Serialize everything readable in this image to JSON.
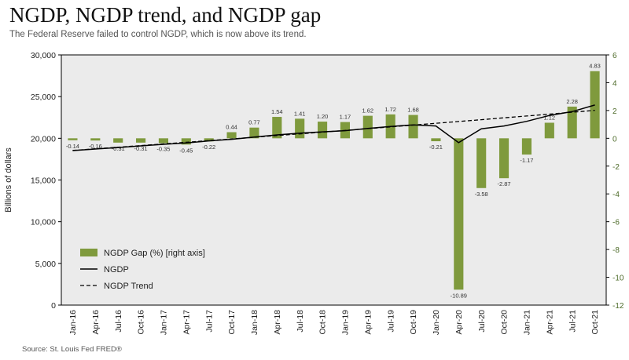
{
  "header": {
    "title": "NGDP, NGDP trend, and NGDP gap",
    "subtitle": "The Federal Reserve failed to control NGDP, which is now above its trend."
  },
  "footer": {
    "source": "Source: St. Louis Fed FRED®"
  },
  "colors": {
    "bar": "#7f9a3d",
    "line": "#000000",
    "plot_bg": "#ebebeb",
    "right_axis": "#4e6b2a"
  },
  "chart_data": {
    "type": "bar",
    "categories": [
      "Jan-16",
      "Apr-16",
      "Jul-16",
      "Oct-16",
      "Jan-17",
      "Apr-17",
      "Jul-17",
      "Oct-17",
      "Jan-18",
      "Apr-18",
      "Jul-18",
      "Oct-18",
      "Jan-19",
      "Apr-19",
      "Jul-19",
      "Oct-19",
      "Jan-20",
      "Apr-20",
      "Jul-20",
      "Oct-20",
      "Jan-21",
      "Apr-21",
      "Jul-21",
      "Oct-21"
    ],
    "series": [
      {
        "name": "NGDP Gap (%) [right axis]",
        "type": "bar",
        "axis": "right",
        "values": [
          -0.14,
          -0.16,
          -0.31,
          -0.31,
          -0.35,
          -0.45,
          -0.22,
          0.44,
          0.77,
          1.54,
          1.41,
          1.2,
          1.17,
          1.62,
          1.72,
          1.68,
          -0.21,
          -10.89,
          -3.58,
          -2.87,
          -1.17,
          1.12,
          2.28,
          4.83
        ],
        "labels": [
          "-0.14",
          "-0.16",
          "-0.31",
          "-0.31",
          "-0.35",
          "-0.45",
          "-0.22",
          "0.44",
          "0.77",
          "1.54",
          "1.41",
          "1.20",
          "1.17",
          "1.62",
          "1.72",
          "1.68",
          "-0.21",
          "-10.89",
          "-3.58",
          "-2.87",
          "-1.17",
          "1.12",
          "2.28",
          "4.83"
        ]
      },
      {
        "name": "NGDP",
        "type": "line",
        "axis": "left",
        "values": [
          18525,
          18712,
          18892,
          19089,
          19280,
          19438,
          19693,
          19882,
          20156,
          20410,
          20612,
          20775,
          20919,
          21191,
          21419,
          21610,
          21479,
          19477,
          21139,
          21478,
          22038,
          22741,
          23202,
          23992
        ]
      },
      {
        "name": "NGDP Trend",
        "type": "line",
        "style": "dashed",
        "axis": "left",
        "values": [
          18550,
          18742,
          18935,
          19130,
          19325,
          19523,
          19722,
          19922,
          20124,
          20328,
          20533,
          20740,
          20948,
          21158,
          21370,
          21585,
          21800,
          22016,
          22235,
          22455,
          22677,
          22901,
          23126,
          23354
        ]
      }
    ],
    "yaxis_left": {
      "label": "Billions of dollars",
      "range": [
        0,
        30000
      ],
      "ticks": [
        "0",
        "5,000",
        "10,000",
        "15,000",
        "20,000",
        "25,000",
        "30,000"
      ]
    },
    "yaxis_right": {
      "range": [
        -12,
        6
      ],
      "ticks": [
        "-12",
        "-10",
        "-8",
        "-6",
        "-4",
        "-2",
        "0",
        "2",
        "4",
        "6"
      ]
    },
    "legend": {
      "position": "bottom-left"
    },
    "grid": false
  }
}
